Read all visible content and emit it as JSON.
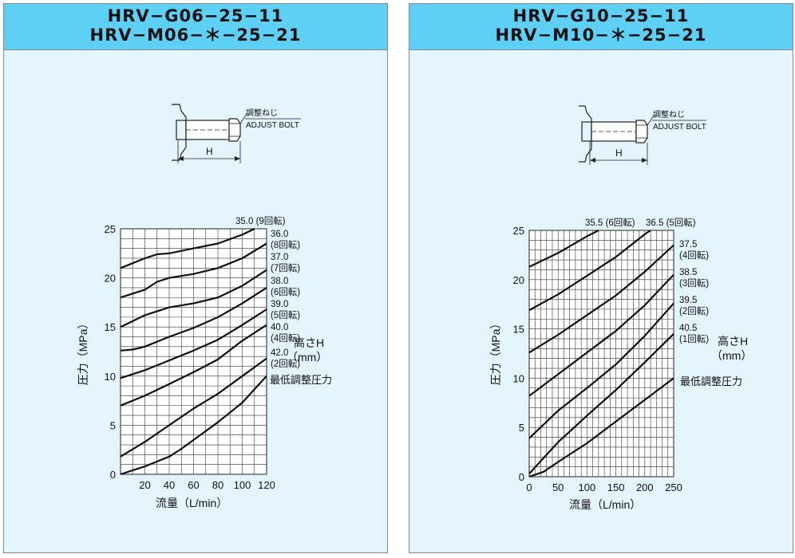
{
  "charts": [
    {
      "model_line1": "HRV−G06−25−11",
      "model_line2": "HRV−M06−＊−25−21",
      "callout_jp": "調整ねじ",
      "callout_en": "ADJUST BOLT",
      "dim_label": "H",
      "legend_title": "高さH",
      "legend_unit": "（mm）",
      "min_label": "最低調整圧力"
    },
    {
      "model_line1": "HRV−G10−25−11",
      "model_line2": "HRV−M10−＊−25−21",
      "callout_jp": "調整ねじ",
      "callout_en": "ADJUST BOLT",
      "dim_label": "H",
      "legend_title": "高さH",
      "legend_unit": "（mm）",
      "min_label": "最低調整圧力"
    }
  ],
  "chart_data": [
    {
      "type": "line",
      "xlabel": "流量（L/min）",
      "ylabel": "圧力（MPa）",
      "xlim": [
        0,
        120
      ],
      "ylim": [
        0,
        25
      ],
      "xticks": [
        "20",
        "40",
        "60",
        "80",
        "100",
        "120"
      ],
      "yticks": [
        "0",
        "5",
        "10",
        "15",
        "20",
        "25"
      ],
      "grid": true,
      "series": [
        {
          "name": "35.0 (9回転)",
          "x": [
            0,
            20,
            30,
            40,
            60,
            80,
            100,
            110
          ],
          "y": [
            21,
            22,
            22.4,
            22.5,
            23,
            23.5,
            24.4,
            25
          ]
        },
        {
          "name": "36.0 (8回転)",
          "x": [
            0,
            20,
            30,
            40,
            60,
            80,
            100,
            120
          ],
          "y": [
            18,
            18.8,
            19.6,
            20,
            20.4,
            21,
            22,
            23.5
          ]
        },
        {
          "name": "37.0 (7回転)",
          "x": [
            0,
            20,
            40,
            60,
            80,
            100,
            120
          ],
          "y": [
            15,
            16.2,
            17,
            17.4,
            18,
            19.2,
            20.8
          ]
        },
        {
          "name": "38.0 (6回転)",
          "x": [
            0,
            10,
            20,
            40,
            60,
            80,
            100,
            120
          ],
          "y": [
            12.6,
            12.7,
            13,
            14,
            14.9,
            16,
            17.4,
            19
          ]
        },
        {
          "name": "39.0 (5回転)",
          "x": [
            0,
            20,
            40,
            60,
            80,
            100,
            120
          ],
          "y": [
            9.8,
            10.6,
            11.6,
            12.6,
            13.7,
            15.2,
            16.8
          ]
        },
        {
          "name": "40.0 (4回転)",
          "x": [
            0,
            20,
            40,
            60,
            80,
            100,
            120
          ],
          "y": [
            7,
            8,
            9.2,
            10.4,
            11.7,
            13.6,
            15.2
          ]
        },
        {
          "name": "42.0 (2回転)",
          "x": [
            0,
            20,
            40,
            60,
            80,
            100,
            120
          ],
          "y": [
            1.8,
            3.3,
            5,
            6.7,
            8.2,
            10,
            11.8
          ]
        },
        {
          "name": "最低調整圧力",
          "x": [
            0,
            20,
            40,
            50,
            60,
            80,
            100,
            120
          ],
          "y": [
            0,
            0.8,
            1.8,
            2.6,
            3.5,
            5.3,
            7.3,
            10
          ]
        }
      ]
    },
    {
      "type": "line",
      "xlabel": "流量（L/min）",
      "ylabel": "圧力（MPa）",
      "xlim": [
        0,
        250
      ],
      "ylim": [
        0,
        25
      ],
      "xticks": [
        "0",
        "50",
        "100",
        "150",
        "200",
        "250"
      ],
      "yticks": [
        "0",
        "5",
        "10",
        "15",
        "20",
        "25"
      ],
      "grid": true,
      "series": [
        {
          "name": "35.5 (6回転)",
          "x": [
            0,
            50,
            100,
            120
          ],
          "y": [
            21.3,
            22.7,
            24.4,
            25
          ]
        },
        {
          "name": "36.5 (5回転)",
          "x": [
            0,
            50,
            100,
            150,
            200,
            210
          ],
          "y": [
            16.9,
            18.5,
            20.4,
            22.3,
            24.6,
            25
          ]
        },
        {
          "name": "37.5 (4回転)",
          "x": [
            0,
            50,
            100,
            150,
            200,
            250
          ],
          "y": [
            12.6,
            14.4,
            16.4,
            18.4,
            20.8,
            23.5
          ]
        },
        {
          "name": "38.5 (3回転)",
          "x": [
            0,
            50,
            100,
            150,
            200,
            250
          ],
          "y": [
            8.2,
            10.4,
            12.6,
            14.8,
            17.4,
            20.5
          ]
        },
        {
          "name": "39.5 (2回転)",
          "x": [
            0,
            50,
            100,
            150,
            200,
            250
          ],
          "y": [
            3.9,
            6.7,
            9,
            11.4,
            14.3,
            17.6
          ]
        },
        {
          "name": "40.5 (1回転)",
          "x": [
            0,
            50,
            100,
            150,
            200,
            250
          ],
          "y": [
            0.3,
            3.5,
            6.2,
            8.8,
            11.6,
            14.5
          ]
        },
        {
          "name": "最低調整圧力",
          "x": [
            0,
            25,
            50,
            100,
            150,
            200,
            250
          ],
          "y": [
            0,
            0.5,
            1.5,
            3.4,
            5.6,
            7.8,
            10
          ]
        }
      ]
    }
  ]
}
